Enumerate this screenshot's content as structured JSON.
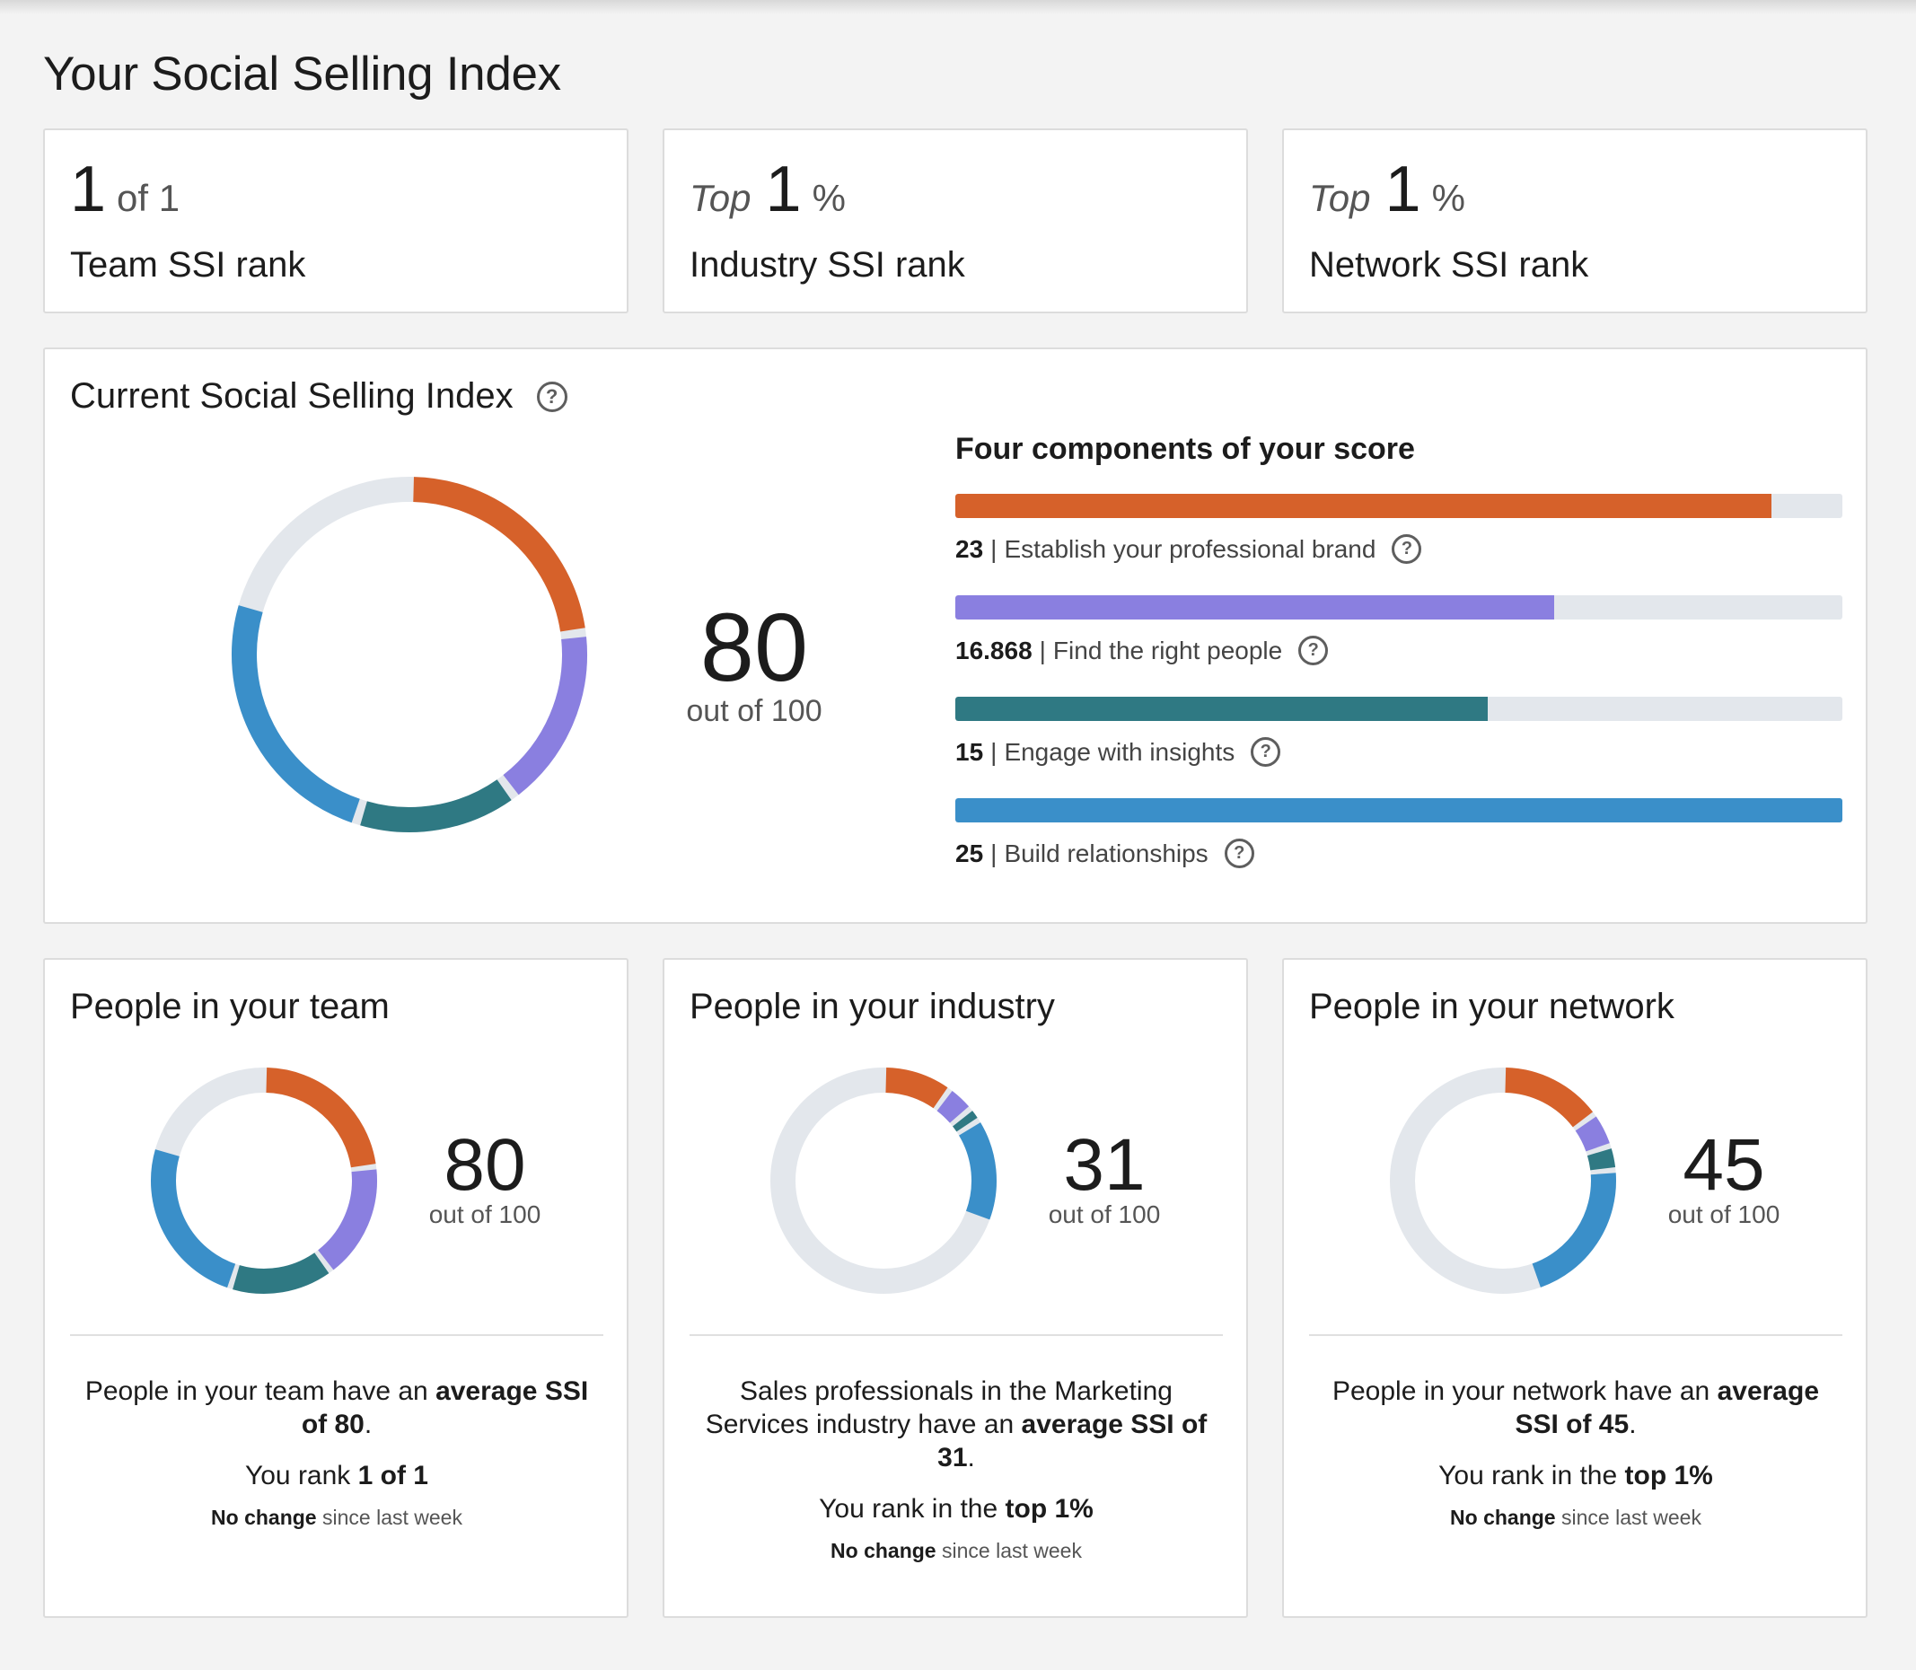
{
  "page": {
    "title": "Your Social Selling Index"
  },
  "ranks": [
    {
      "prefix": "",
      "value": "1",
      "suffix": "of 1",
      "label": "Team SSI rank"
    },
    {
      "prefix": "Top",
      "value": "1",
      "suffix": "%",
      "label": "Industry SSI rank"
    },
    {
      "prefix": "Top",
      "value": "1",
      "suffix": "%",
      "label": "Network SSI rank"
    }
  ],
  "current": {
    "heading": "Current Social Selling Index",
    "score": "80",
    "out_of": "out of 100",
    "components_title": "Four components of your score",
    "components": [
      {
        "value": "23",
        "label": "Establish your professional brand",
        "max": 25,
        "color": "#d6612a"
      },
      {
        "value": "16.868",
        "label": "Find the right people",
        "max": 25,
        "color": "#8a7fe0"
      },
      {
        "value": "15",
        "label": "Engage with insights",
        "max": 25,
        "color": "#2f7983"
      },
      {
        "value": "25",
        "label": "Build relationships",
        "max": 25,
        "color": "#3a8fc9"
      }
    ]
  },
  "people": [
    {
      "title": "People in your team",
      "score": "80",
      "out_of": "out of 100",
      "components": [
        23,
        16.868,
        15,
        25
      ],
      "desc_pre": "People in your team have an ",
      "desc_bold": "average SSI of 80",
      "desc_post": ".",
      "rank_pre": "You rank ",
      "rank_bold": "1 of 1",
      "change_bold": "No change",
      "change_rest": " since last week"
    },
    {
      "title": "People in your industry",
      "score": "31",
      "out_of": "out of 100",
      "components": [
        10,
        4,
        2,
        15
      ],
      "desc_pre": "Sales professionals in the Marketing Services industry have an ",
      "desc_bold": "average SSI of 31",
      "desc_post": ".",
      "rank_pre": "You rank in the ",
      "rank_bold": "top 1%",
      "change_bold": "No change",
      "change_rest": " since last week"
    },
    {
      "title": "People in your network",
      "score": "45",
      "out_of": "out of 100",
      "components": [
        15,
        5,
        3.5,
        21.5
      ],
      "desc_pre": "People in your network have an ",
      "desc_bold": "average SSI of 45",
      "desc_post": ".",
      "rank_pre": "You rank in the ",
      "rank_bold": "top 1%",
      "change_bold": "No change",
      "change_rest": " since last week"
    }
  ],
  "colors": {
    "brand": "#d6612a",
    "people": "#8a7fe0",
    "insights": "#2f7983",
    "relationships": "#3a8fc9",
    "track": "#e3e7ec"
  },
  "icons": {
    "help": "question-circle-icon"
  }
}
